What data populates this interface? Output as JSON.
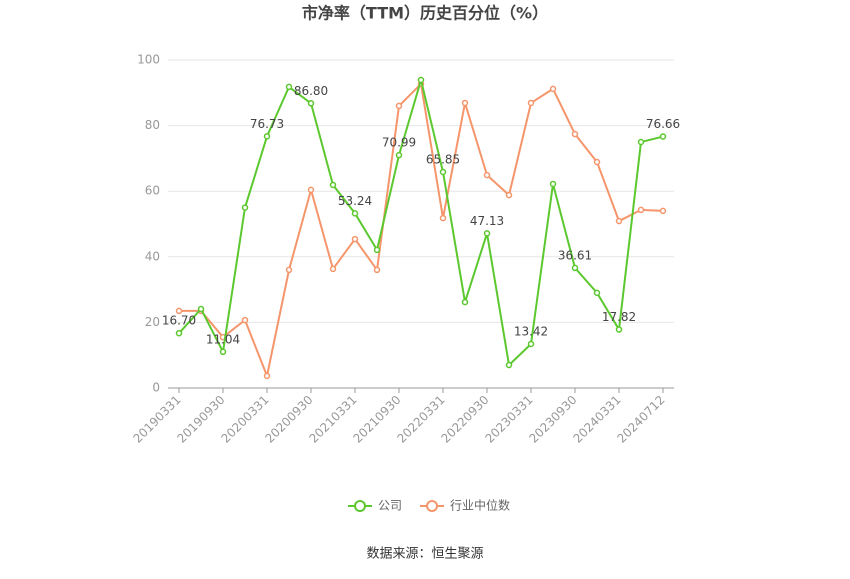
{
  "chart_data": {
    "type": "line",
    "title": "市净率（TTM）历史百分位（%）",
    "source": "数据来源：恒生聚源",
    "categories": [
      "20190331",
      null,
      "20190930",
      null,
      "20200331",
      null,
      "20200930",
      null,
      "20210331",
      null,
      "20210930",
      null,
      "20220331",
      null,
      "20220930",
      null,
      "20230331",
      null,
      "20230930",
      null,
      "20240331",
      null,
      "20240712"
    ],
    "series": [
      {
        "name": "公司",
        "color": "#5cc82f",
        "values": [
          16.7,
          24.1,
          11.04,
          55,
          76.73,
          91.8,
          86.8,
          61.9,
          53.24,
          42.1,
          70.99,
          93.9,
          65.85,
          26.2,
          47.13,
          7.0,
          13.42,
          62.2,
          36.61,
          29.0,
          17.82,
          75.0,
          76.66
        ],
        "value_labels": [
          "16.70",
          null,
          "11.04",
          null,
          "76.73",
          null,
          "86.80",
          null,
          "53.24",
          null,
          "70.99",
          null,
          "65.85",
          null,
          "47.13",
          null,
          "13.42",
          null,
          "36.61",
          null,
          "17.82",
          null,
          "76.66"
        ]
      },
      {
        "name": "行业中位数",
        "color": "#f5956b",
        "values": [
          23.5,
          23.5,
          15.5,
          20.7,
          3.7,
          36,
          60.4,
          36.3,
          45.4,
          36,
          86,
          92.7,
          51.8,
          86.9,
          64.9,
          58.8,
          86.9,
          91.2,
          77.4,
          68.9,
          50.9,
          54.3,
          54
        ]
      }
    ],
    "ylim": [
      0,
      100
    ],
    "yticks": [
      0,
      20,
      40,
      60,
      80,
      100
    ],
    "grid": true,
    "legend": "bottom"
  }
}
